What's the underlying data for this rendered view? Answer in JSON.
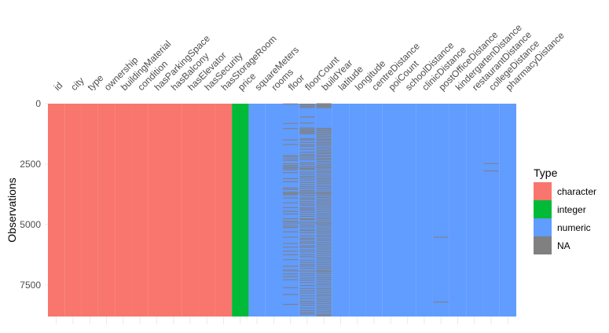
{
  "chart_data": {
    "type": "heatmap",
    "ylabel": "Observations",
    "columns": [
      "id",
      "city",
      "type",
      "ownership",
      "buildingMaterial",
      "condition",
      "hasParkingSpace",
      "hasBalcony",
      "hasElevator",
      "hasSecurity",
      "hasStorageRoom",
      "price",
      "squareMeters",
      "rooms",
      "floor",
      "floorCount",
      "buildYear",
      "latitude",
      "longitude",
      "centreDistance",
      "poiCount",
      "schoolDistance",
      "clinicDistance",
      "postOfficeDistance",
      "kindergartenDistance",
      "restaurantDistance",
      "collegeDistance",
      "pharmacyDistance"
    ],
    "column_types": [
      "character",
      "character",
      "character",
      "character",
      "character",
      "character",
      "character",
      "character",
      "character",
      "character",
      "character",
      "integer",
      "numeric",
      "numeric",
      "numeric",
      "numeric",
      "numeric",
      "numeric",
      "numeric",
      "numeric",
      "numeric",
      "numeric",
      "numeric",
      "numeric",
      "numeric",
      "numeric",
      "numeric",
      "numeric"
    ],
    "n_observations": 8800,
    "y_ticks": [
      0,
      2500,
      5000,
      7500
    ],
    "y_direction": "reversed",
    "na_rows": {
      "floor": [
        10,
        820,
        1030,
        1500,
        1690,
        2150,
        2200,
        2280,
        2350,
        2480,
        2550,
        2610,
        2670,
        2730,
        2850,
        3100,
        3230,
        3490,
        3550,
        3660,
        3720,
        3770,
        3900,
        4100,
        4300,
        4450,
        4560,
        4760,
        4870,
        4970,
        5060,
        5120,
        5300,
        5520,
        5780,
        5930,
        6100,
        6250,
        6450,
        6720,
        6880,
        7040,
        7150,
        7280,
        7610,
        7890,
        8300
      ],
      "floorCount": [
        20,
        60,
        110,
        160,
        550,
        800,
        1010,
        1060,
        1110,
        1160,
        1200,
        1250,
        1450,
        1500,
        1600,
        1700,
        1760,
        1880,
        2010,
        2100,
        2160,
        2240,
        2310,
        2440,
        2510,
        2600,
        2680,
        2720,
        2830,
        2920,
        3010,
        3080,
        3160,
        3260,
        3350,
        3430,
        3500,
        3590,
        3650,
        3730,
        3800,
        3900,
        3960,
        4050,
        4130,
        4200,
        4290,
        4350,
        4410,
        4490,
        4580,
        4660,
        4760,
        4800,
        4900,
        5020,
        5100,
        5200,
        5250,
        5340,
        5460,
        5560,
        5620,
        5710,
        5770,
        5880,
        5940,
        6050,
        6130,
        6240,
        6330,
        6470,
        6560,
        6650,
        6720,
        6810,
        6920,
        7020,
        7110,
        7210,
        7300,
        7400,
        7520,
        7640,
        7740,
        7830,
        7950,
        8060,
        8170,
        8250,
        8330,
        8450,
        8560,
        8640,
        8700
      ],
      "buildYear": [
        0,
        40,
        80,
        120,
        170,
        1020,
        1070,
        1120,
        1180,
        1230,
        1290,
        1350,
        1420,
        1480,
        1540,
        1610,
        1660,
        1720,
        1790,
        1860,
        1930,
        2000,
        2060,
        2130,
        2190,
        2260,
        2320,
        2390,
        2460,
        2530,
        2590,
        2660,
        2740,
        2810,
        2870,
        2950,
        3020,
        3090,
        3150,
        3220,
        3290,
        3370,
        3440,
        3520,
        3600,
        3670,
        3740,
        3810,
        3880,
        3950,
        4020,
        4090,
        4160,
        4230,
        4310,
        4380,
        4460,
        4540,
        4610,
        4690,
        4760,
        4830,
        4910,
        4990,
        5060,
        5140,
        5220,
        5290,
        5360,
        5440,
        5510,
        5590,
        5660,
        5740,
        5820,
        5890,
        5970,
        6040,
        6120,
        6190,
        6270,
        6350,
        6420,
        6500,
        6580,
        6650,
        6730,
        6800,
        6880,
        6960,
        7030,
        7110,
        7190,
        7260,
        7340,
        7420,
        7490,
        7570,
        7650,
        7720,
        7800,
        7880,
        7950,
        8030,
        8110,
        8180,
        8260,
        8340,
        8420,
        8500,
        8580,
        8650,
        8720,
        8770
      ],
      "postOfficeDistance": [
        5520,
        8200
      ],
      "collegeDistance": [
        2480,
        2780
      ],
      "schoolDistance": [],
      "kindergartenDistance": []
    },
    "row_lines": [
      2630,
      3700,
      4900,
      4960,
      6920
    ],
    "legend": {
      "title": "Type",
      "placement": "right",
      "items": [
        {
          "label": "character",
          "color": "#F8766D"
        },
        {
          "label": "integer",
          "color": "#00BA38"
        },
        {
          "label": "numeric",
          "color": "#619CFF"
        },
        {
          "label": "NA",
          "color": "#808080"
        }
      ]
    },
    "grid": true
  }
}
